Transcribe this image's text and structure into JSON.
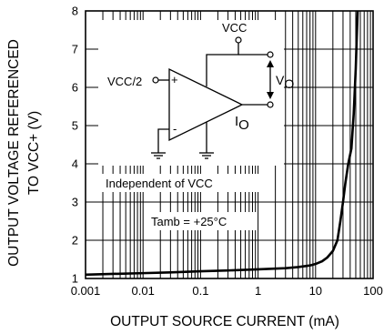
{
  "chart_data": {
    "type": "line",
    "xlabel": "OUTPUT SOURCE CURRENT (mA)",
    "ylabel_lines": [
      "OUTPUT VOLTAGE REFERENCED",
      "TO VCC+ (V)"
    ],
    "x_scale": "log",
    "xlim": [
      0.001,
      100
    ],
    "ylim": [
      1,
      8
    ],
    "x_ticks": [
      {
        "value": 0.001,
        "label": "0.001"
      },
      {
        "value": 0.01,
        "label": "0.01"
      },
      {
        "value": 0.1,
        "label": "0.1"
      },
      {
        "value": 1,
        "label": "1"
      },
      {
        "value": 10,
        "label": "10"
      },
      {
        "value": 100,
        "label": "100"
      }
    ],
    "y_ticks": [
      {
        "value": 1,
        "label": "1"
      },
      {
        "value": 2,
        "label": "2"
      },
      {
        "value": 3,
        "label": "3"
      },
      {
        "value": 4,
        "label": "4"
      },
      {
        "value": 5,
        "label": "5"
      },
      {
        "value": 6,
        "label": "6"
      },
      {
        "value": 7,
        "label": "7"
      },
      {
        "value": 8,
        "label": "8"
      }
    ],
    "grid": true,
    "series": [
      {
        "x": [
          0.001,
          0.003,
          0.01,
          0.03,
          0.1,
          0.3,
          1,
          3,
          5,
          8,
          10,
          13,
          16,
          20,
          24,
          27,
          30,
          33,
          37,
          42,
          46,
          50,
          52,
          54
        ],
        "y": [
          1.1,
          1.12,
          1.14,
          1.16,
          1.19,
          1.21,
          1.24,
          1.27,
          1.3,
          1.34,
          1.38,
          1.45,
          1.55,
          1.72,
          2.0,
          2.5,
          3.0,
          3.5,
          4.0,
          4.4,
          5.3,
          6.5,
          7.3,
          8.0
        ]
      }
    ],
    "annotations": {
      "vcc": "VCC",
      "vcc_half": "VCC/2",
      "plus": "+",
      "minus": "-",
      "vo_main": "V",
      "vo_sub": "O",
      "io_main": "I",
      "io_sub": "O",
      "independent": "Independent of VCC",
      "tamb": "Tamb = +25°C"
    }
  }
}
